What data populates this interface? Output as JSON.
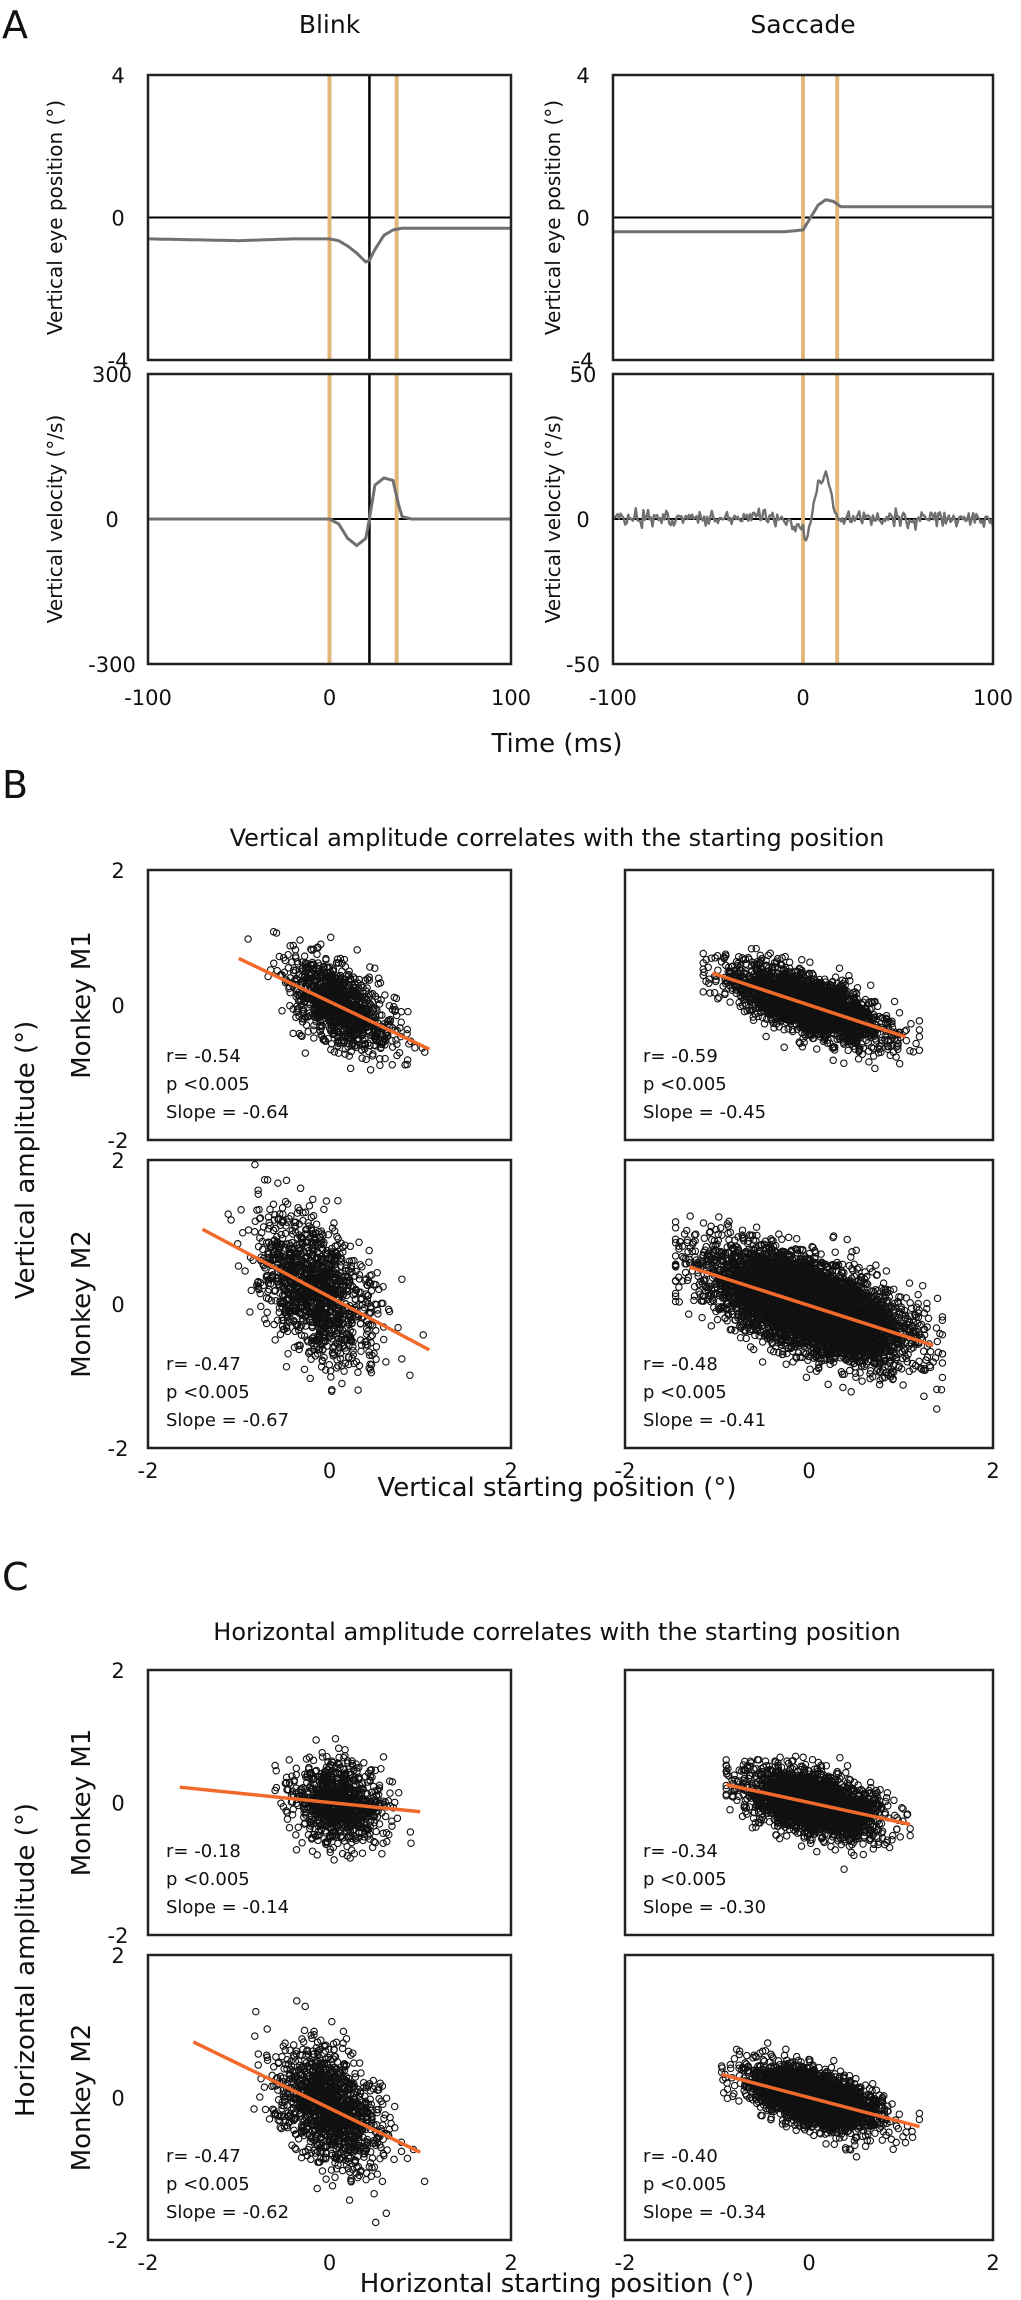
{
  "figure": {
    "sections": {
      "a": "A",
      "b": "B",
      "c": "C"
    }
  },
  "chart_data": [
    {
      "id": "A_blink_position",
      "type": "line",
      "section": "A",
      "title": "Blink",
      "xlabel": "",
      "ylabel": "Vertical eye position (°)",
      "xlim": [
        -100,
        100
      ],
      "ylim": [
        -4,
        4
      ],
      "yticks": [
        "4",
        "0",
        "-4"
      ],
      "xticks": [],
      "markers": [
        {
          "x": 0,
          "kind": "tan"
        },
        {
          "x": 22,
          "kind": "black"
        },
        {
          "x": 37,
          "kind": "tan"
        }
      ],
      "series": [
        {
          "name": "vertical eye position",
          "x": [
            -100,
            -50,
            -20,
            0,
            5,
            10,
            15,
            20,
            22,
            25,
            30,
            35,
            40,
            50,
            100
          ],
          "y": [
            -0.6,
            -0.65,
            -0.6,
            -0.6,
            -0.65,
            -0.8,
            -1.0,
            -1.25,
            -1.2,
            -0.9,
            -0.5,
            -0.35,
            -0.3,
            -0.3,
            -0.3
          ]
        }
      ]
    },
    {
      "id": "A_saccade_position",
      "type": "line",
      "section": "A",
      "title": "Saccade",
      "xlabel": "",
      "ylabel": "Vertical eye position (°)",
      "xlim": [
        -100,
        100
      ],
      "ylim": [
        -4,
        4
      ],
      "yticks": [
        "4",
        "0",
        "-4"
      ],
      "xticks": [],
      "markers": [
        {
          "x": 0,
          "kind": "tan"
        },
        {
          "x": 18,
          "kind": "tan"
        }
      ],
      "series": [
        {
          "name": "vertical eye position",
          "x": [
            -100,
            -50,
            -10,
            0,
            4,
            8,
            12,
            16,
            20,
            30,
            100
          ],
          "y": [
            -0.4,
            -0.4,
            -0.4,
            -0.35,
            0,
            0.35,
            0.5,
            0.45,
            0.3,
            0.3,
            0.3
          ]
        }
      ]
    },
    {
      "id": "A_blink_velocity",
      "type": "line",
      "section": "A",
      "title": "",
      "xlabel": "",
      "ylabel": "Vertical velocity (°/s)",
      "xlim": [
        -100,
        100
      ],
      "ylim": [
        -300,
        300
      ],
      "yticks": [
        "300",
        "0",
        "-300"
      ],
      "xticks": [
        "-100",
        "0",
        "100"
      ],
      "markers": [
        {
          "x": 0,
          "kind": "tan"
        },
        {
          "x": 22,
          "kind": "black"
        },
        {
          "x": 37,
          "kind": "tan"
        }
      ],
      "series": [
        {
          "name": "vertical velocity",
          "x": [
            -100,
            -50,
            0,
            5,
            10,
            15,
            20,
            22,
            25,
            30,
            35,
            38,
            40,
            45,
            50,
            100
          ],
          "y": [
            0,
            0,
            0,
            -10,
            -40,
            -55,
            -40,
            0,
            70,
            85,
            80,
            30,
            5,
            0,
            0,
            0
          ]
        }
      ]
    },
    {
      "id": "A_saccade_velocity",
      "type": "line",
      "section": "A",
      "title": "",
      "xlabel": "",
      "ylabel": "Vertical velocity (°/s)",
      "xlim": [
        -100,
        100
      ],
      "ylim": [
        -50,
        50
      ],
      "yticks": [
        "50",
        "0",
        "-50"
      ],
      "xticks": [
        "-100",
        "0",
        "100"
      ],
      "markers": [
        {
          "x": 0,
          "kind": "tan"
        },
        {
          "x": 18,
          "kind": "tan"
        }
      ],
      "series": [
        {
          "name": "vertical velocity",
          "x": [
            -100,
            -10,
            0,
            2,
            5,
            8,
            12,
            15,
            18,
            22,
            100
          ],
          "y": [
            0,
            0,
            -4,
            -7,
            3,
            12,
            15,
            8,
            0,
            0,
            0
          ],
          "noise": 1.3
        }
      ]
    },
    {
      "id": "B_blink_M1",
      "type": "scatter",
      "section": "B",
      "title": "Vertical amplitude correlates with the starting position",
      "xlim": [
        -2,
        2
      ],
      "ylim": [
        -2,
        2
      ],
      "yticks": [
        "2",
        "0",
        "-2"
      ],
      "xticks": [],
      "monkey": "Monkey M1",
      "ylabel": "Vertical amplitude (°)",
      "points": {
        "n": 1100,
        "x_mean": 0.1,
        "x_sd": 0.28,
        "y_sd": 0.28,
        "x_min": -1.3,
        "x_max": 1.05
      },
      "fit": {
        "slope": -0.64,
        "intercept": 0.05,
        "x_range": [
          -1.0,
          1.1
        ]
      },
      "stats": {
        "r": "r= -0.54",
        "p": "p <0.005",
        "slope": "Slope = -0.64"
      }
    },
    {
      "id": "B_saccade_M1",
      "type": "scatter",
      "section": "B",
      "xlim": [
        -2,
        2
      ],
      "ylim": [
        -2,
        2
      ],
      "yticks": [],
      "xticks": [],
      "monkey": "",
      "ylabel": "",
      "points": {
        "n": 3000,
        "x_mean": 0.0,
        "x_sd": 0.38,
        "y_sd": 0.2,
        "x_min": -1.15,
        "x_max": 1.2
      },
      "fit": {
        "slope": -0.45,
        "intercept": 0.0,
        "x_range": [
          -1.05,
          1.05
        ]
      },
      "stats": {
        "r": "r= -0.59",
        "p": "p <0.005",
        "slope": "Slope = -0.45"
      }
    },
    {
      "id": "B_blink_M2",
      "type": "scatter",
      "section": "B",
      "xlim": [
        -2,
        2
      ],
      "ylim": [
        -2,
        2
      ],
      "yticks": [
        "2",
        "0",
        "-2"
      ],
      "xticks": [
        "-2",
        "0",
        "2"
      ],
      "monkey": "Monkey M2",
      "ylabel": "",
      "points": {
        "n": 1300,
        "x_mean": -0.15,
        "x_sd": 0.33,
        "y_sd": 0.45,
        "x_min": -1.35,
        "x_max": 1.05
      },
      "fit": {
        "slope": -0.67,
        "intercept": 0.1,
        "x_range": [
          -1.4,
          1.1
        ]
      },
      "stats": {
        "r": "r= -0.47",
        "p": "p <0.005",
        "slope": "Slope = -0.67"
      }
    },
    {
      "id": "B_saccade_M2",
      "type": "scatter",
      "section": "B",
      "xlim": [
        -2,
        2
      ],
      "ylim": [
        -2,
        2
      ],
      "yticks": [],
      "xticks": [
        "-2",
        "0",
        "2"
      ],
      "monkey": "",
      "ylabel": "",
      "points": {
        "n": 6000,
        "x_mean": 0.0,
        "x_sd": 0.5,
        "y_sd": 0.3,
        "x_min": -1.45,
        "x_max": 1.45
      },
      "fit": {
        "slope": -0.41,
        "intercept": -0.02,
        "x_range": [
          -1.3,
          1.35
        ]
      },
      "stats": {
        "r": "r= -0.48",
        "p": "p <0.005",
        "slope": "Slope = -0.41"
      }
    },
    {
      "id": "C_blink_M1",
      "type": "scatter",
      "section": "C",
      "title": "Horizontal amplitude correlates with the starting position",
      "xlim": [
        -2,
        2
      ],
      "ylim": [
        -2,
        2
      ],
      "yticks": [
        "2",
        "0",
        "-2"
      ],
      "xticks": [],
      "monkey": "Monkey M1",
      "ylabel": "Horizontal  amplitude (°)",
      "points": {
        "n": 900,
        "x_mean": 0.1,
        "x_sd": 0.25,
        "y_sd": 0.3,
        "x_min": -0.6,
        "x_max": 1.0
      },
      "fit": {
        "slope": -0.14,
        "intercept": 0.0,
        "x_range": [
          -1.65,
          1.0
        ]
      },
      "stats": {
        "r": "r= -0.18",
        "p": "p <0.005",
        "slope": "Slope = -0.14"
      }
    },
    {
      "id": "C_saccade_M1",
      "type": "scatter",
      "section": "C",
      "xlim": [
        -2,
        2
      ],
      "ylim": [
        -2,
        2
      ],
      "yticks": [],
      "xticks": [],
      "monkey": "",
      "ylabel": "",
      "points": {
        "n": 2800,
        "x_mean": 0.05,
        "x_sd": 0.33,
        "y_sd": 0.22,
        "x_min": -0.9,
        "x_max": 1.1
      },
      "fit": {
        "slope": -0.3,
        "intercept": 0.0,
        "x_range": [
          -0.9,
          1.1
        ]
      },
      "stats": {
        "r": "r= -0.34",
        "p": "p <0.005",
        "slope": "Slope = -0.30"
      }
    },
    {
      "id": "C_blink_M2",
      "type": "scatter",
      "section": "C",
      "xlim": [
        -2,
        2
      ],
      "ylim": [
        -2,
        2
      ],
      "yticks": [
        "2",
        "0",
        "-2"
      ],
      "xticks": [
        "-2",
        "0",
        "2"
      ],
      "monkey": "Monkey M2",
      "ylabel": "",
      "points": {
        "n": 1300,
        "x_mean": 0.0,
        "x_sd": 0.28,
        "y_sd": 0.38,
        "x_min": -1.1,
        "x_max": 1.05
      },
      "fit": {
        "slope": -0.62,
        "intercept": -0.15,
        "x_range": [
          -1.5,
          1.0
        ]
      },
      "stats": {
        "r": "r= -0.47",
        "p": "p <0.005",
        "slope": "Slope = -0.62"
      }
    },
    {
      "id": "C_saccade_M2",
      "type": "scatter",
      "section": "C",
      "xlim": [
        -2,
        2
      ],
      "ylim": [
        -2,
        2
      ],
      "yticks": [],
      "xticks": [
        "-2",
        "0",
        "2"
      ],
      "monkey": "",
      "ylabel": "",
      "points": {
        "n": 3200,
        "x_mean": 0.05,
        "x_sd": 0.33,
        "y_sd": 0.18,
        "x_min": -0.95,
        "x_max": 1.2
      },
      "fit": {
        "slope": -0.34,
        "intercept": 0.0,
        "x_range": [
          -0.95,
          1.2
        ]
      },
      "stats": {
        "r": "r= -0.40",
        "p": "p <0.005",
        "slope": "Slope = -0.34"
      }
    }
  ],
  "shared_axes": {
    "a_xlabel": "Time (ms)",
    "b_xlabel": "Vertical starting position (°)",
    "c_xlabel": "Horizontal starting position (°)"
  },
  "colors": {
    "tan_marker": "#e2b77a",
    "black_marker": "#000000",
    "trace": "#707070",
    "scatter": "#111111",
    "fit": "#f26a2b",
    "frame": "#222222"
  }
}
